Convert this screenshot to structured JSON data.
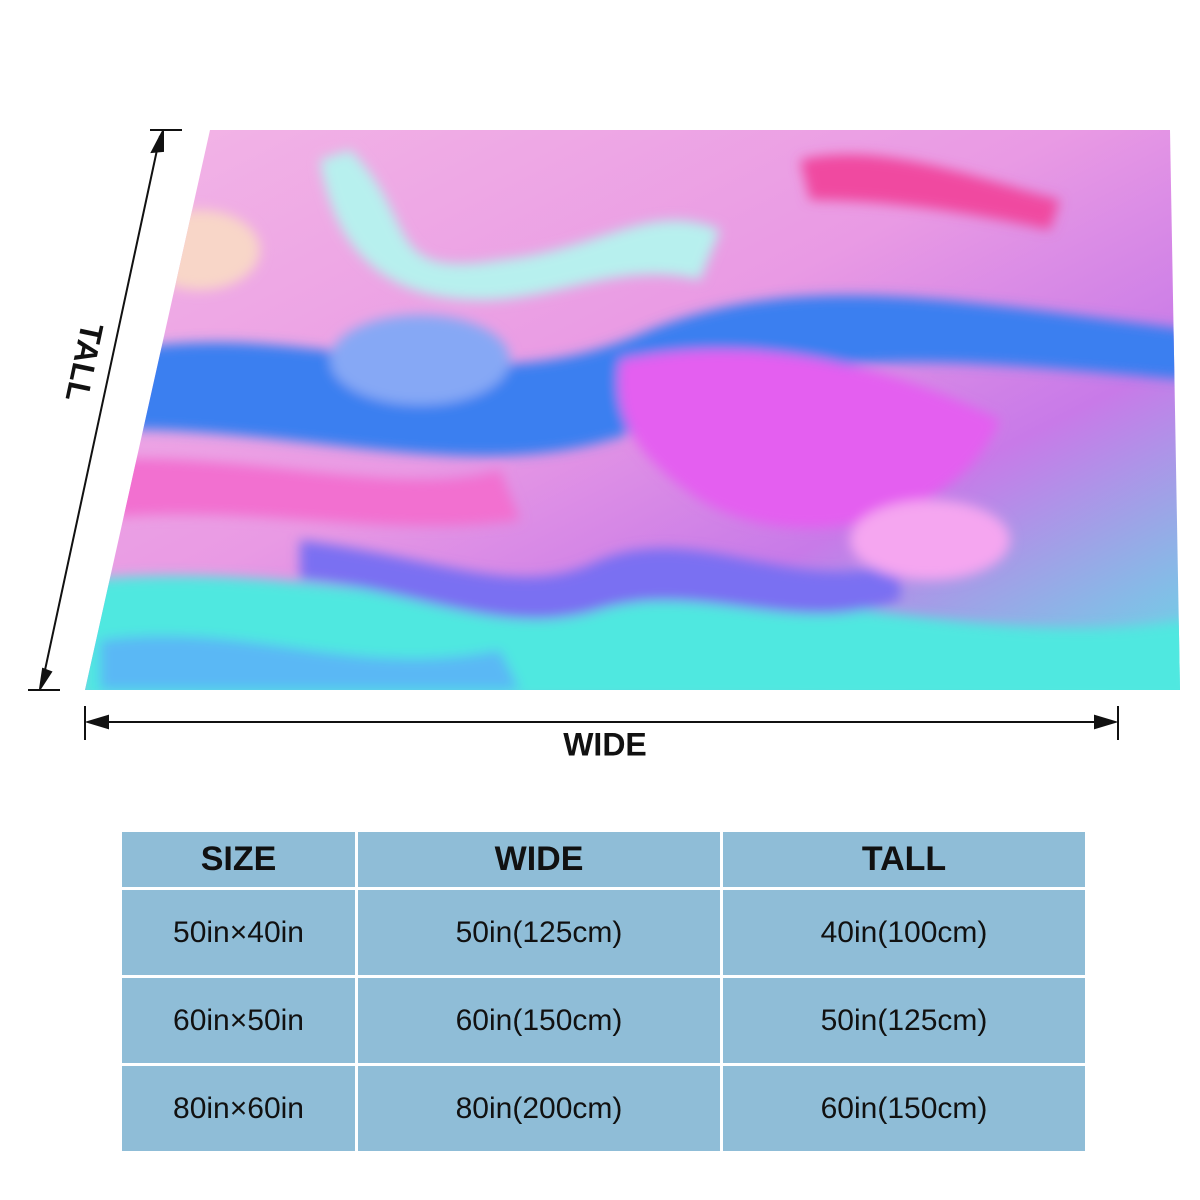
{
  "labels": {
    "tall": "TALL",
    "wide": "WIDE"
  },
  "table": {
    "header": [
      "SIZE",
      "WIDE",
      "TALL"
    ],
    "rows": [
      [
        "50in×40in",
        "50in(125cm)",
        "40in(100cm)"
      ],
      [
        "60in×50in",
        "60in(150cm)",
        "50in(125cm)"
      ],
      [
        "80in×60in",
        "80in(200cm)",
        "60in(150cm)"
      ]
    ]
  }
}
